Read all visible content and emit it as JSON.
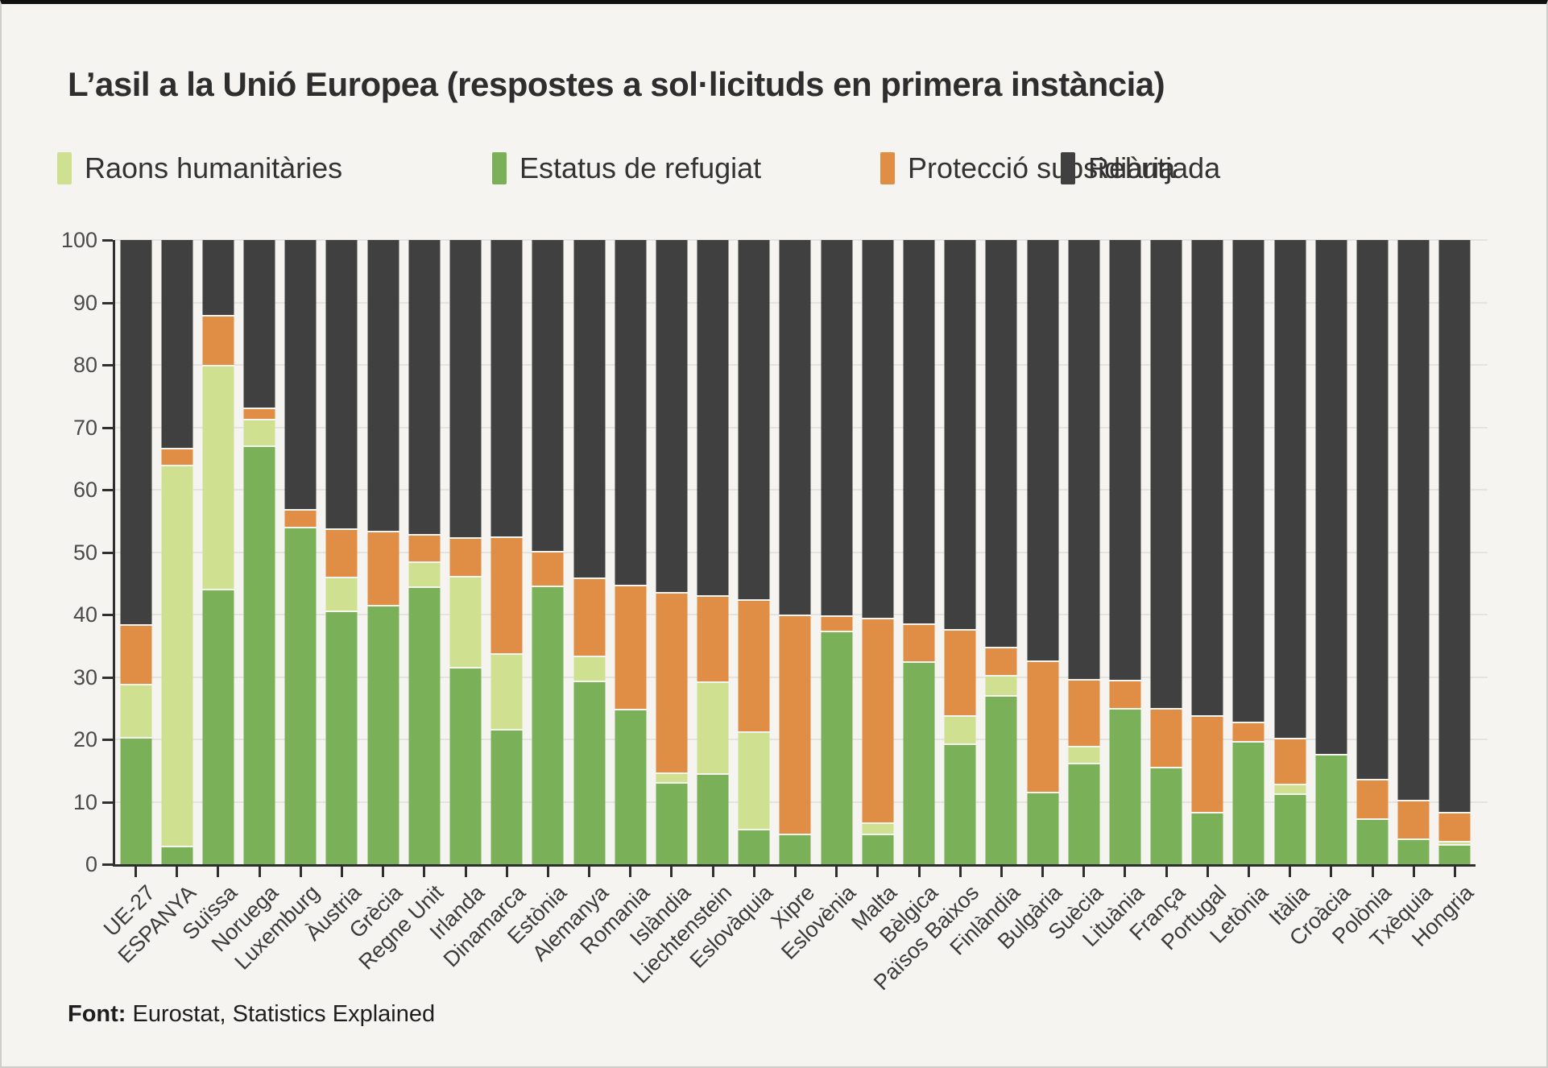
{
  "header": {
    "title": "L’asil a la Unió Europea (respostes a sol·licituds en primera instància)"
  },
  "footer": {
    "source_label": "Font:",
    "source_text": " Eurostat, Statistics Explained"
  },
  "colors": {
    "background": "#f5f4f1",
    "humanitarian": "#cfe191",
    "refugee": "#79b058",
    "subsidiary": "#e08e45",
    "rejected": "#404040",
    "gridline": "#e4e3df",
    "axis": "#2f2f2f"
  },
  "legend": [
    {
      "id": "humanitarian",
      "label": "Raons humanitàries",
      "color": "#cfe191"
    },
    {
      "id": "refugee",
      "label": "Estatus de refugiat",
      "color": "#79b058"
    },
    {
      "id": "subsidiary",
      "label": "Protecció subsidiària",
      "color": "#e08e45"
    },
    {
      "id": "rejected",
      "label": "Rebutjada",
      "color": "#404040"
    }
  ],
  "chart_data": {
    "type": "bar",
    "stacked": true,
    "unit": "percent",
    "ylim": [
      0,
      100
    ],
    "y_ticks": [
      0,
      10,
      20,
      30,
      40,
      50,
      60,
      70,
      80,
      90,
      100
    ],
    "grid": true,
    "legend_position": "top",
    "stack_order_bottom_to_top": [
      "refugee",
      "humanitarian",
      "subsidiary",
      "rejected"
    ],
    "categories": [
      "UE-27",
      "ESPANYA",
      "Suïssa",
      "Noruega",
      "Luxemburg",
      "Àustria",
      "Grècia",
      "Regne Unit",
      "Irlanda",
      "Dinamarca",
      "Estònia",
      "Alemanya",
      "Romania",
      "Islàndia",
      "Liechtenstein",
      "Eslovàquia",
      "Xipre",
      "Eslovènia",
      "Malta",
      "Bèlgica",
      "Països Baixos",
      "Finlàndia",
      "Bulgària",
      "Suècia",
      "Lituània",
      "França",
      "Portugal",
      "Letònia",
      "Itàlia",
      "Croàcia",
      "Polònia",
      "Txèquia",
      "Hongria"
    ],
    "series": [
      {
        "id": "humanitarian",
        "name": "Raons humanitàries",
        "color": "#cfe191",
        "values": [
          8.5,
          61.1,
          35.9,
          4.2,
          0,
          5.4,
          0,
          4.0,
          14.7,
          12.1,
          0,
          4.1,
          0,
          1.5,
          14.7,
          15.6,
          0,
          0,
          1.7,
          0,
          4.5,
          3.3,
          0,
          2.7,
          0,
          0,
          0,
          0,
          1.5,
          0,
          0,
          0,
          0.5
        ]
      },
      {
        "id": "refugee",
        "name": "Estatus de refugiat",
        "color": "#79b058",
        "values": [
          20.1,
          2.7,
          43.9,
          66.9,
          53.8,
          40.4,
          41.3,
          44.2,
          31.3,
          21.4,
          44.4,
          29.1,
          24.6,
          12.9,
          14.3,
          5.4,
          4.7,
          37.2,
          4.7,
          32.3,
          19.1,
          26.8,
          11.3,
          16.0,
          24.8,
          15.3,
          8.1,
          19.5,
          11.1,
          17.4,
          7.1,
          3.9,
          3.0
        ]
      },
      {
        "id": "subsidiary",
        "name": "Protecció subsidiària",
        "color": "#e08e45",
        "values": [
          9.6,
          2.6,
          7.9,
          1.8,
          2.9,
          7.8,
          11.9,
          4.4,
          6.1,
          18.7,
          5.6,
          12.5,
          19.9,
          28.9,
          13.9,
          21.2,
          35.0,
          2.4,
          32.8,
          6.0,
          13.8,
          4.5,
          21.1,
          10.7,
          4.5,
          9.5,
          15.5,
          3.1,
          7.4,
          0,
          6.3,
          6.2,
          4.6
        ]
      },
      {
        "id": "rejected",
        "name": "Rebutjada",
        "color": "#404040",
        "values": [
          61.8,
          33.6,
          12.3,
          27.1,
          43.3,
          46.4,
          46.8,
          47.4,
          47.9,
          47.8,
          50.0,
          54.3,
          55.5,
          56.7,
          57.1,
          57.8,
          60.3,
          60.4,
          60.8,
          61.7,
          62.6,
          65.4,
          67.6,
          70.6,
          70.7,
          75.2,
          76.4,
          77.4,
          80.0,
          82.6,
          86.6,
          89.9,
          91.9
        ]
      }
    ]
  }
}
